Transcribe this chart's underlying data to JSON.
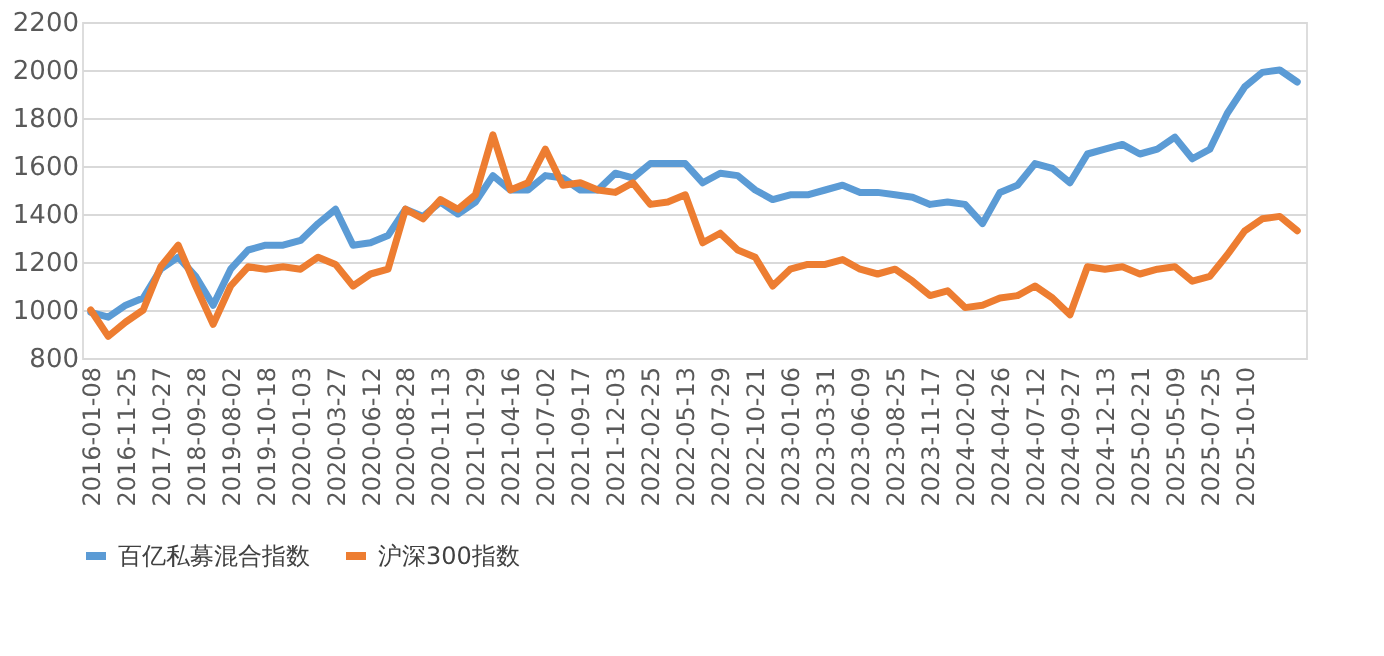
{
  "chart_data": {
    "type": "line",
    "categories": [
      "2016-01-08",
      null,
      "2016-11-25",
      null,
      "2017-10-27",
      null,
      "2018-09-28",
      null,
      "2019-08-02",
      null,
      "2019-10-18",
      null,
      "2020-01-03",
      null,
      "2020-03-27",
      null,
      "2020-06-12",
      null,
      "2020-08-28",
      null,
      "2020-11-13",
      null,
      "2021-01-29",
      null,
      "2021-04-16",
      null,
      "2021-07-02",
      null,
      "2021-09-17",
      null,
      "2021-12-03",
      null,
      "2022-02-25",
      null,
      "2022-05-13",
      null,
      "2022-07-29",
      null,
      "2022-10-21",
      null,
      "2023-01-06",
      null,
      "2023-03-31",
      null,
      "2023-06-09",
      null,
      "2023-08-25",
      null,
      "2023-11-17",
      null,
      "2024-02-02",
      null,
      "2024-04-26",
      null,
      "2024-07-12",
      null,
      "2024-09-27",
      null,
      "2024-12-13",
      null,
      "2025-02-21",
      null,
      "2025-05-09",
      null,
      "2025-07-25",
      null,
      "2025-10-10",
      null,
      null,
      null
    ],
    "series": [
      {
        "name": "百亿私募混合指数",
        "color": "#5b9bd5",
        "values": [
          990,
          970,
          1020,
          1050,
          1170,
          1220,
          1140,
          1020,
          1170,
          1250,
          1270,
          1270,
          1290,
          1360,
          1420,
          1270,
          1280,
          1310,
          1420,
          1390,
          1450,
          1400,
          1450,
          1560,
          1500,
          1500,
          1560,
          1550,
          1500,
          1500,
          1570,
          1550,
          1610,
          1610,
          1610,
          1530,
          1570,
          1560,
          1500,
          1460,
          1480,
          1480,
          1500,
          1520,
          1490,
          1490,
          1480,
          1470,
          1440,
          1450,
          1440,
          1360,
          1490,
          1520,
          1610,
          1590,
          1530,
          1650,
          1670,
          1690,
          1650,
          1670,
          1720,
          1630,
          1670,
          1820,
          1930,
          1990,
          2000,
          1950
        ]
      },
      {
        "name": "沪深300指数",
        "color": "#ed7d31",
        "values": [
          1000,
          890,
          950,
          1000,
          1180,
          1270,
          1100,
          940,
          1100,
          1180,
          1170,
          1180,
          1170,
          1220,
          1190,
          1100,
          1150,
          1170,
          1420,
          1380,
          1460,
          1420,
          1480,
          1730,
          1500,
          1530,
          1670,
          1520,
          1530,
          1500,
          1490,
          1530,
          1440,
          1450,
          1480,
          1280,
          1320,
          1250,
          1220,
          1100,
          1170,
          1190,
          1190,
          1210,
          1170,
          1150,
          1170,
          1120,
          1060,
          1080,
          1010,
          1020,
          1050,
          1060,
          1100,
          1050,
          980,
          1180,
          1170,
          1180,
          1150,
          1170,
          1180,
          1120,
          1140,
          1230,
          1330,
          1380,
          1390,
          1330
        ]
      }
    ],
    "ylim": [
      800,
      2200
    ],
    "yticks": [
      800,
      1000,
      1200,
      1400,
      1600,
      1800,
      2000,
      2200
    ],
    "grid": "y",
    "legend": "bottom",
    "line_style": "solid",
    "marker": "none"
  }
}
